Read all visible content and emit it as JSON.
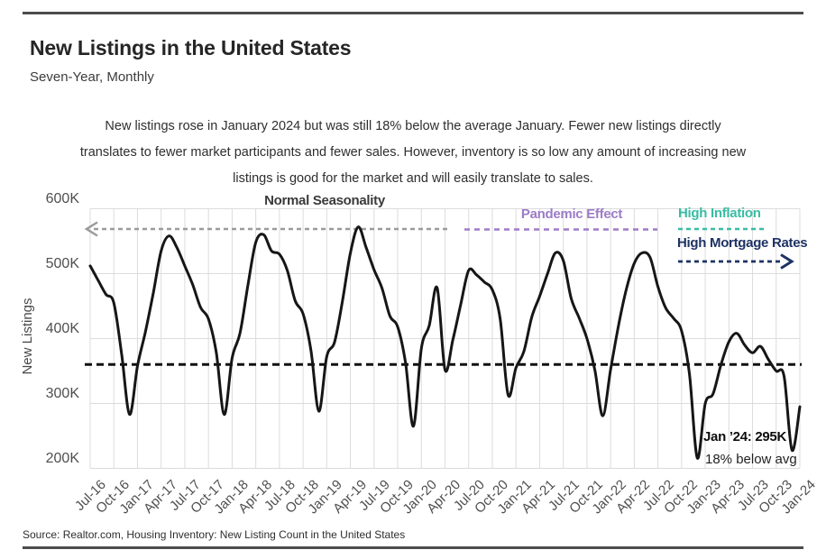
{
  "header": {
    "title": "New Listings in the United States",
    "subtitle": "Seven-Year, Monthly"
  },
  "description": {
    "line1": "New listings rose in January 2024 but was still 18% below the average January. Fewer new listings directly",
    "line2": "translates to fewer market participants and fewer sales. However, inventory is so low any amount of increasing new",
    "line3": "listings is good for the market and will easily translate to sales."
  },
  "annotations": {
    "normal_seasonality": "Normal Seasonality",
    "pandemic_effect": "Pandemic Effect",
    "high_inflation": "High Inflation",
    "high_mortgage_rates": "High Mortgage Rates",
    "endpoint": "Jan ’24: 295K",
    "endpoint_note": "18% below avg"
  },
  "source": "Source:  Realtor.com, Housing Inventory: New Listing Count in the United States",
  "colors": {
    "line": "#161616",
    "grid": "#dcdcdc",
    "axis_text": "#4f4f4f",
    "seasonality_gray": "#9b9b9b",
    "pandemic_purple": "#9d7cc7",
    "inflation_teal": "#39bca3",
    "mortgage_navy": "#1e3264",
    "avg_line_black": "#111111",
    "rule_gray": "#4c4c4c"
  },
  "chart_data": {
    "type": "line",
    "title": "New Listings in the United States",
    "ylabel": "New Listings",
    "ylim_k": [
      200,
      600
    ],
    "y_tick_labels": [
      "600K",
      "500K",
      "400K",
      "300K",
      "200K"
    ],
    "y_tick_values_k": [
      600,
      500,
      400,
      300,
      200
    ],
    "x_tick_labels": [
      "Jul-16",
      "Oct-16",
      "Jan-17",
      "Apr-17",
      "Jul-17",
      "Oct-17",
      "Jan-18",
      "Apr-18",
      "Jul-18",
      "Oct-18",
      "Jan-19",
      "Apr-19",
      "Jul-19",
      "Oct-19",
      "Jan-20",
      "Apr-20",
      "Jul-20",
      "Oct-20",
      "Jan-21",
      "Apr-21",
      "Jul-21",
      "Oct-21",
      "Jan-22",
      "Apr-22",
      "Jul-22",
      "Oct-22",
      "Jan-23",
      "Apr-23",
      "Jul-23",
      "Oct-23",
      "Jan-24"
    ],
    "frequency": "monthly",
    "start_month": "Jul-16",
    "end_month": "Jan-24",
    "grid": true,
    "series": [
      {
        "name": "New Listings (thousands)",
        "values_k": [
          512,
          490,
          468,
          455,
          375,
          283,
          358,
          410,
          470,
          535,
          558,
          540,
          512,
          483,
          448,
          430,
          378,
          283,
          370,
          408,
          482,
          548,
          560,
          535,
          530,
          505,
          458,
          438,
          382,
          288,
          372,
          395,
          458,
          532,
          572,
          540,
          506,
          478,
          435,
          418,
          362,
          265,
          385,
          420,
          478,
          352,
          398,
          453,
          505,
          498,
          487,
          475,
          430,
          313,
          355,
          380,
          433,
          465,
          500,
          532,
          520,
          462,
          432,
          400,
          352,
          281,
          352,
          420,
          476,
          516,
          532,
          525,
          480,
          447,
          431,
          412,
          345,
          216,
          300,
          315,
          360,
          395,
          408,
          390,
          378,
          388,
          368,
          350,
          342,
          228,
          295
        ]
      }
    ],
    "average_line": {
      "value_k": 360,
      "style": "dashed",
      "color_key": "avg_line_black"
    },
    "annotation_lines": [
      {
        "label": "Normal Seasonality",
        "color_key": "seasonality_gray",
        "style": "dashed",
        "arrow": "left",
        "level_k": 570,
        "span_months": [
          "Jul-16",
          "Apr-20"
        ]
      },
      {
        "label": "Pandemic Effect",
        "color_key": "pandemic_purple",
        "style": "dashed",
        "level_k": 570,
        "span_months": [
          "Jun-20",
          "May-22"
        ]
      },
      {
        "label": "High Inflation",
        "color_key": "inflation_teal",
        "style": "dashed",
        "level_k": 570,
        "span_months": [
          "Sep-22",
          "Aug-23"
        ]
      },
      {
        "label": "High Mortgage Rates",
        "color_key": "mortgage_navy",
        "style": "dashed",
        "arrow": "right",
        "level_k": 520,
        "span_months": [
          "Sep-22",
          "Jan-24"
        ]
      }
    ],
    "endpoint_annotation": {
      "month": "Jan-24",
      "value_k": 295,
      "label": "Jan ’24: 295K",
      "note": "18% below avg"
    }
  }
}
